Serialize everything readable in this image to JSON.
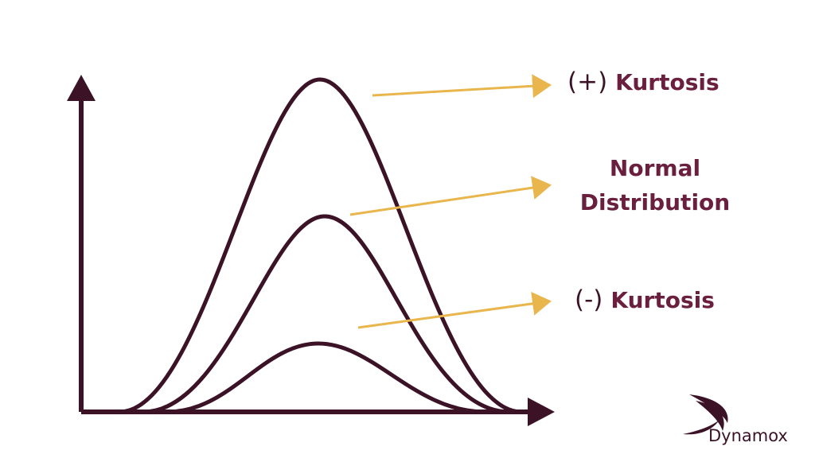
{
  "colors": {
    "curve": "#3b1226",
    "axis": "#3b1226",
    "arrow": "#e8b64c",
    "label_text": "#6b1f3f",
    "sign_text": "#3b1226",
    "logo": "#3b1226"
  },
  "labels": {
    "positive": {
      "sign": "(+)",
      "word": "Kurtosis"
    },
    "normal": {
      "line1": "Normal",
      "line2": "Distribution"
    },
    "negative": {
      "sign": "(-)",
      "word": "Kurtosis"
    }
  },
  "logo": {
    "text": "Dynamox",
    "icon": "dynamox-swoosh-icon"
  }
}
